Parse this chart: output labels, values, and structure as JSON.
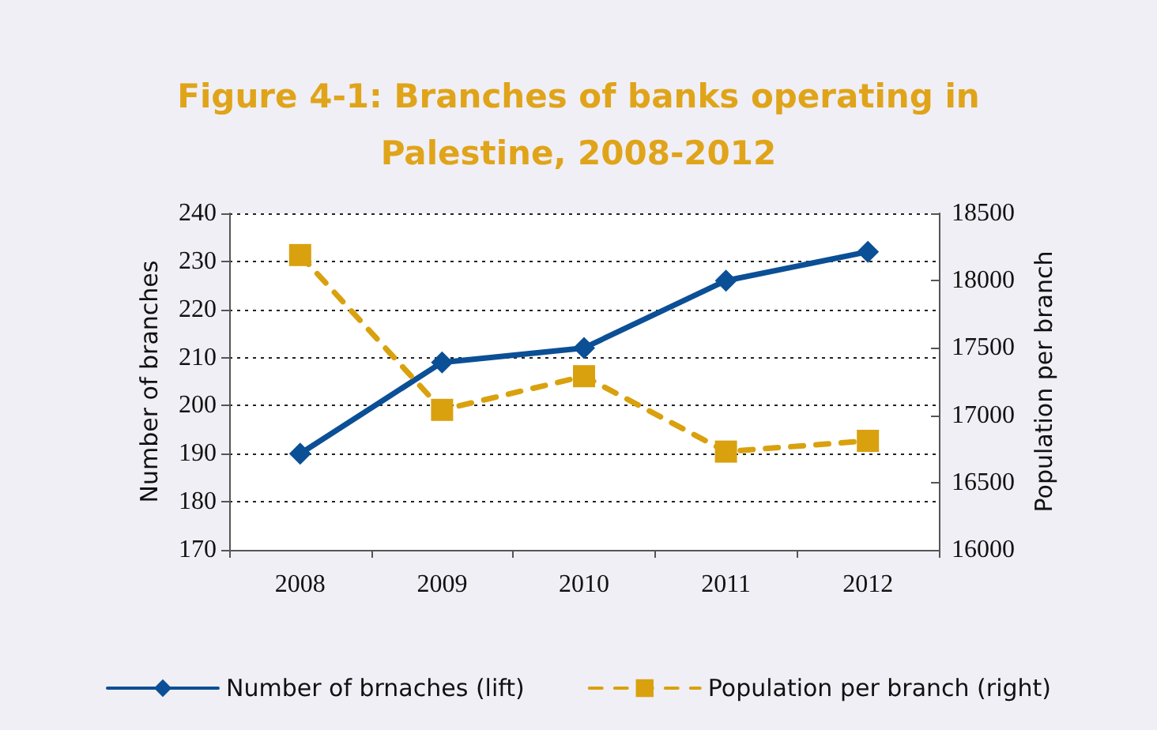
{
  "chart_data": {
    "type": "line",
    "title": "Figure 4-1: Branches of banks operating in\nPalestine, 2008-2012",
    "ylabel": "Number of branches",
    "y2label": "Population per branch",
    "categories": [
      "2008",
      "2009",
      "2010",
      "2011",
      "2012"
    ],
    "series": [
      {
        "name": "Number of brnaches (lift)",
        "color": "#0b4f96",
        "values": [
          190,
          209,
          212,
          226,
          232
        ],
        "marker": "diamond",
        "line_style": "solid"
      },
      {
        "name": "Population per branch (right)",
        "color": "#d9a10e",
        "values": [
          18190,
          17040,
          17290,
          16730,
          16810
        ],
        "axis": "y2",
        "marker": "square",
        "line_style": "dashed"
      }
    ],
    "ylim": [
      170,
      240
    ],
    "yticks": [
      170,
      180,
      190,
      200,
      210,
      220,
      230,
      240
    ],
    "y2lim": [
      16000,
      18500
    ],
    "y2ticks": [
      16000,
      16500,
      17000,
      17500,
      18000,
      18500
    ],
    "grid": "y",
    "legend": "bottom"
  }
}
